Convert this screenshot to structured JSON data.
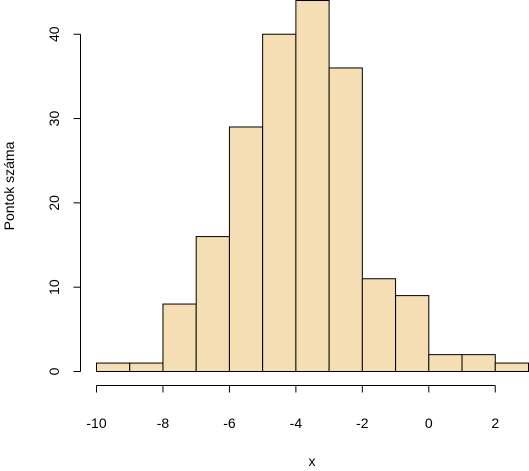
{
  "chart_data": {
    "type": "bar",
    "title": "",
    "xlabel": "x",
    "ylabel": "Pontok száma",
    "xlim": [
      -10,
      3
    ],
    "ylim": [
      0,
      44
    ],
    "bins": [
      {
        "start": -10,
        "end": -9,
        "count": 1
      },
      {
        "start": -9,
        "end": -8,
        "count": 1
      },
      {
        "start": -8,
        "end": -7,
        "count": 8
      },
      {
        "start": -7,
        "end": -6,
        "count": 16
      },
      {
        "start": -6,
        "end": -5,
        "count": 29
      },
      {
        "start": -5,
        "end": -4,
        "count": 40
      },
      {
        "start": -4,
        "end": -3,
        "count": 44
      },
      {
        "start": -3,
        "end": -2,
        "count": 36
      },
      {
        "start": -2,
        "end": -1,
        "count": 11
      },
      {
        "start": -1,
        "end": 0,
        "count": 9
      },
      {
        "start": 0,
        "end": 1,
        "count": 2
      },
      {
        "start": 1,
        "end": 2,
        "count": 2
      },
      {
        "start": 2,
        "end": 3,
        "count": 1
      }
    ],
    "x_ticks": [
      -10,
      -8,
      -6,
      -4,
      -2,
      0,
      2
    ],
    "x_tick_labels": [
      "-10",
      "-8",
      "-6",
      "-4",
      "-2",
      "0",
      "2"
    ],
    "y_ticks": [
      0,
      10,
      20,
      30,
      40
    ],
    "y_tick_labels": [
      "0",
      "10",
      "20",
      "30",
      "40"
    ],
    "grid": false,
    "legend": "none",
    "bar_color": "#f5deb3",
    "edge_color": "#000000"
  }
}
